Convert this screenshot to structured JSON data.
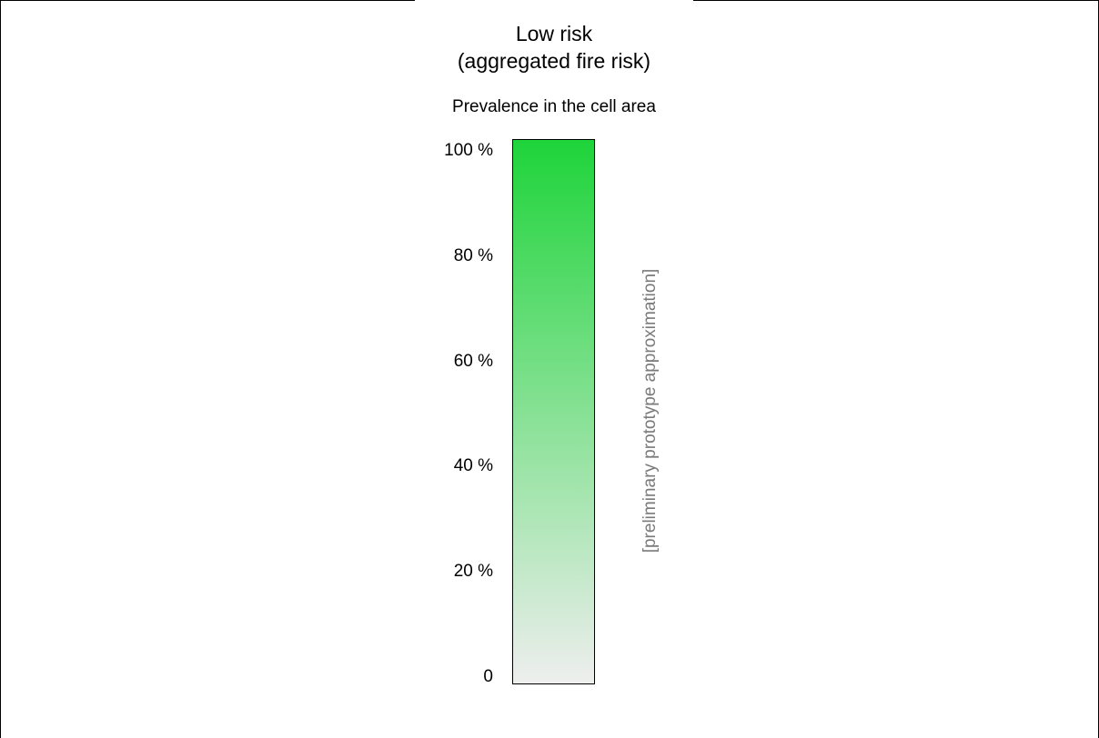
{
  "title_line1": "Low risk",
  "title_line2": "(aggregated fire risk)",
  "subtitle": "Prevalence in the cell area",
  "side_note": "[preliminary prototype approximation]",
  "colors": {
    "bar_top": "#1ed43a",
    "bar_bottom": "#eeeeee",
    "side_note_text": "#7a7a7a"
  },
  "scale": {
    "min": 0,
    "max": 100,
    "ticks": [
      {
        "value": 100,
        "label": "100 %"
      },
      {
        "value": 80,
        "label": "80 %"
      },
      {
        "value": 60,
        "label": "60 %"
      },
      {
        "value": 40,
        "label": "40 %"
      },
      {
        "value": 20,
        "label": "20 %"
      },
      {
        "value": 0,
        "label": "0"
      }
    ]
  }
}
